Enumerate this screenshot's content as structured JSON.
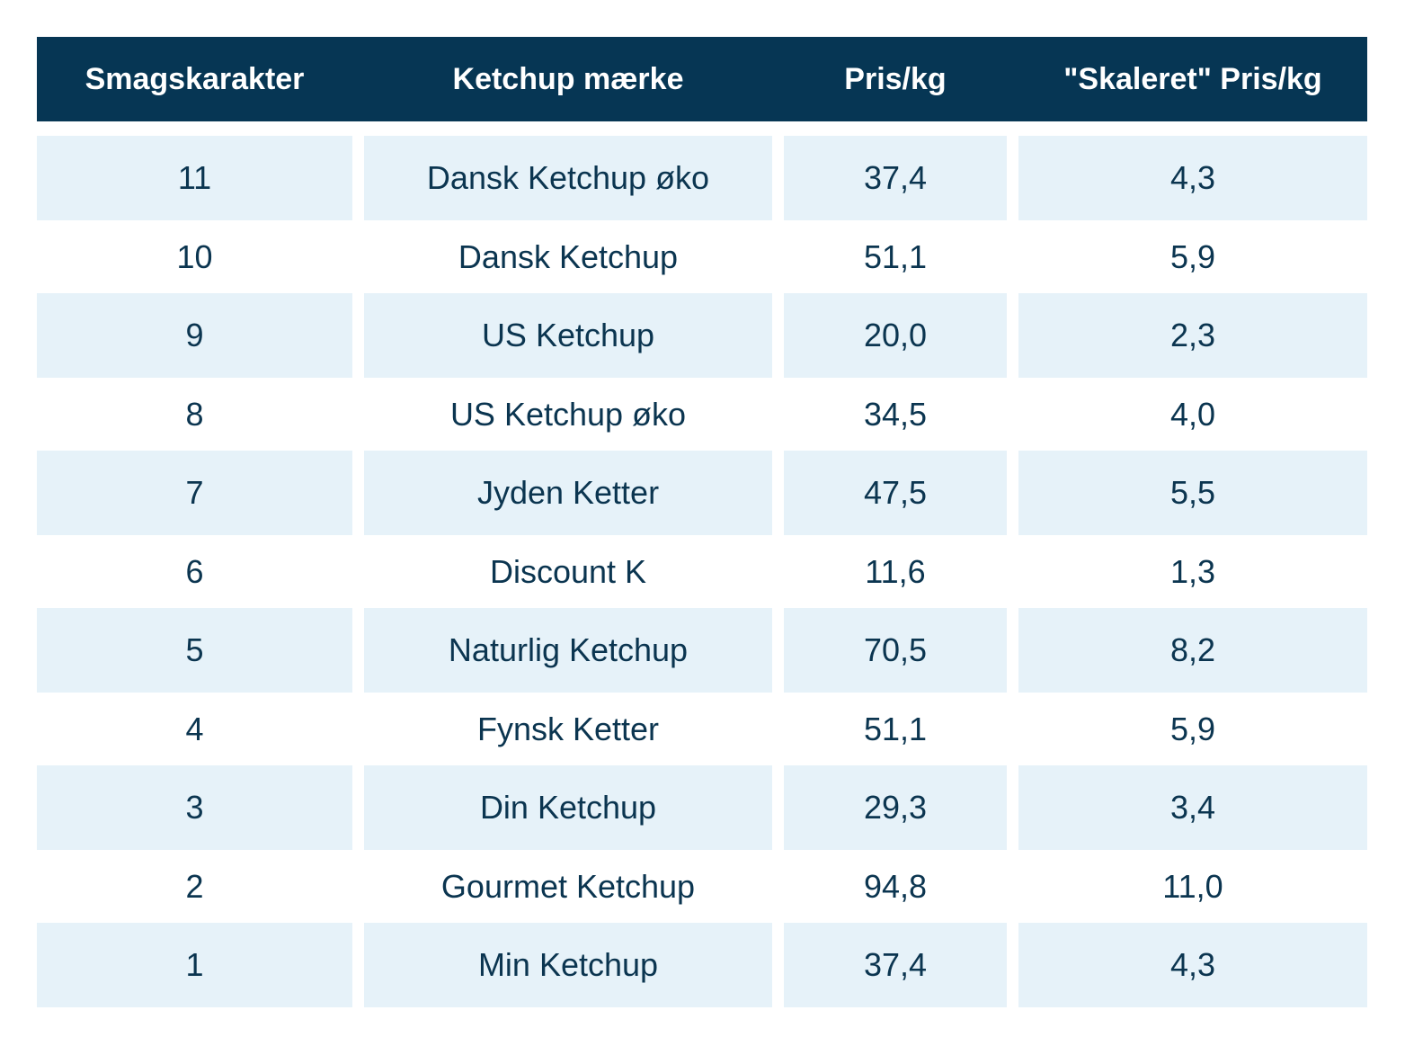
{
  "table": {
    "headers": [
      "Smagskarakter",
      "Ketchup mærke",
      "Pris/kg",
      "\"Skaleret\" Pris/kg"
    ],
    "rows": [
      [
        "11",
        "Dansk Ketchup øko",
        "37,4",
        "4,3"
      ],
      [
        "10",
        "Dansk Ketchup",
        "51,1",
        "5,9"
      ],
      [
        "9",
        "US Ketchup",
        "20,0",
        "2,3"
      ],
      [
        "8",
        "US Ketchup øko",
        "34,5",
        "4,0"
      ],
      [
        "7",
        "Jyden Ketter",
        "47,5",
        "5,5"
      ],
      [
        "6",
        "Discount K",
        "11,6",
        "1,3"
      ],
      [
        "5",
        "Naturlig Ketchup",
        "70,5",
        "8,2"
      ],
      [
        "4",
        "Fynsk Ketter",
        "51,1",
        "5,9"
      ],
      [
        "3",
        "Din Ketchup",
        "29,3",
        "3,4"
      ],
      [
        "2",
        "Gourmet Ketchup",
        "94,8",
        "11,0"
      ],
      [
        "1",
        "Min Ketchup",
        "37,4",
        "4,3"
      ]
    ]
  },
  "colors": {
    "header_bg": "#063654",
    "header_text": "#ffffff",
    "row_shade": "#e6f2f9",
    "body_text": "#0b3550"
  }
}
